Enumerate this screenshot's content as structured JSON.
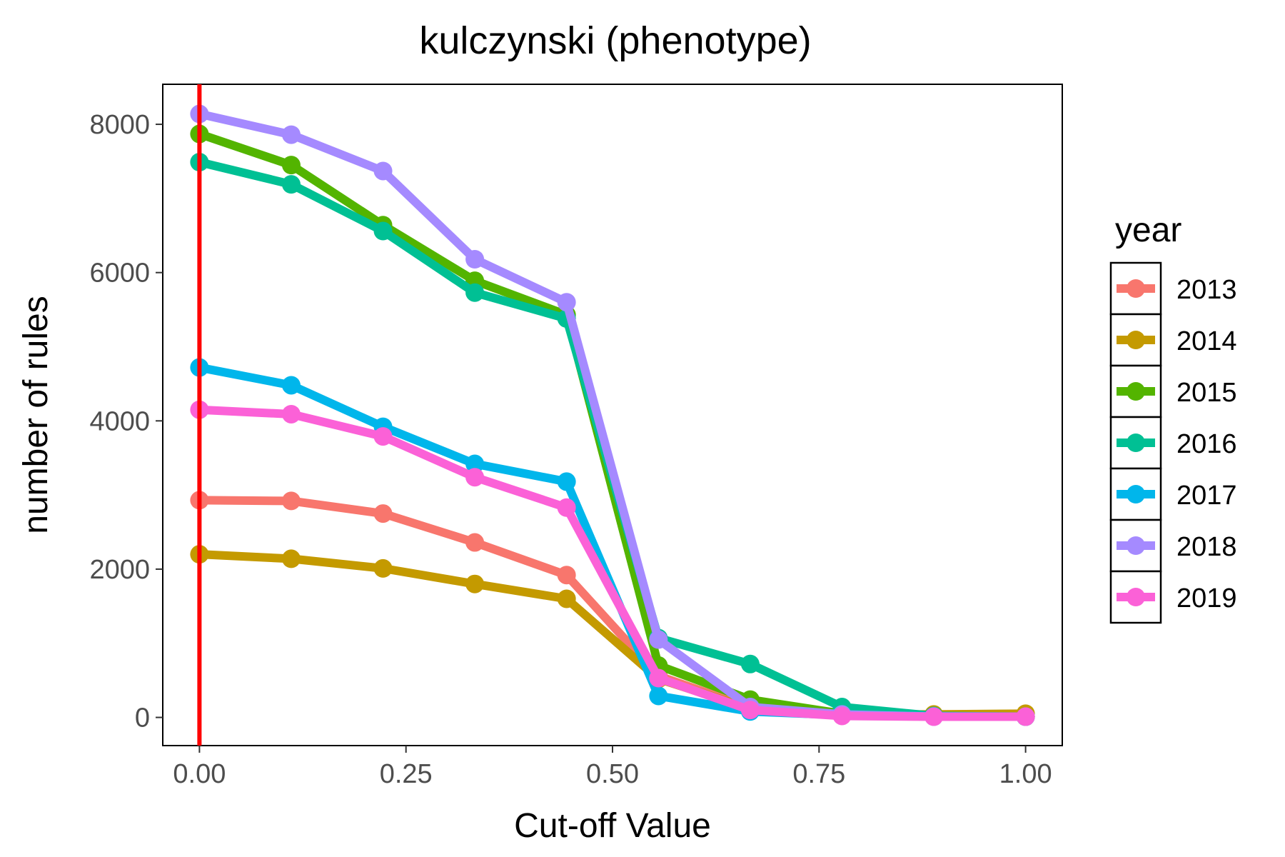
{
  "chart_data": {
    "type": "line",
    "title": "kulczynski (phenotype)",
    "xlabel": "Cut-off Value",
    "ylabel": "number of rules",
    "xlim": [
      -0.0444,
      1.0444
    ],
    "ylim": [
      -380,
      8540
    ],
    "x_ticks": [
      0,
      0.25,
      0.5,
      0.75,
      1
    ],
    "x_tick_labels": [
      "0.00",
      "0.25",
      "0.50",
      "0.75",
      "1.00"
    ],
    "y_ticks": [
      0,
      2000,
      4000,
      6000,
      8000
    ],
    "y_tick_labels": [
      "0",
      "2000",
      "4000",
      "6000",
      "8000"
    ],
    "grid": false,
    "reference_line": {
      "x": 0,
      "color": "#FF0000"
    },
    "legend": {
      "title": "year",
      "position": "right"
    },
    "x": [
      0,
      0.1111,
      0.2222,
      0.3333,
      0.4444,
      0.5556,
      0.6667,
      0.7778,
      0.8889,
      1.0
    ],
    "series": [
      {
        "name": "2013",
        "color": "#F8766D",
        "values": [
          2930,
          2920,
          2750,
          2360,
          1920,
          560,
          130,
          30,
          15,
          10
        ]
      },
      {
        "name": "2014",
        "color": "#C49A00",
        "values": [
          2200,
          2140,
          2010,
          1800,
          1600,
          520,
          120,
          40,
          40,
          50
        ]
      },
      {
        "name": "2015",
        "color": "#53B400",
        "values": [
          7870,
          7450,
          6640,
          5890,
          5430,
          700,
          240,
          50,
          20,
          10
        ]
      },
      {
        "name": "2016",
        "color": "#00C094",
        "values": [
          7490,
          7190,
          6560,
          5730,
          5380,
          1070,
          720,
          140,
          20,
          10
        ]
      },
      {
        "name": "2017",
        "color": "#00B6EB",
        "values": [
          4720,
          4480,
          3920,
          3420,
          3180,
          290,
          80,
          30,
          15,
          10
        ]
      },
      {
        "name": "2018",
        "color": "#A58AFF",
        "values": [
          8140,
          7860,
          7370,
          6180,
          5600,
          1050,
          140,
          40,
          10,
          10
        ]
      },
      {
        "name": "2019",
        "color": "#FB61D7",
        "values": [
          4150,
          4090,
          3790,
          3240,
          2830,
          530,
          100,
          20,
          10,
          10
        ]
      }
    ]
  }
}
